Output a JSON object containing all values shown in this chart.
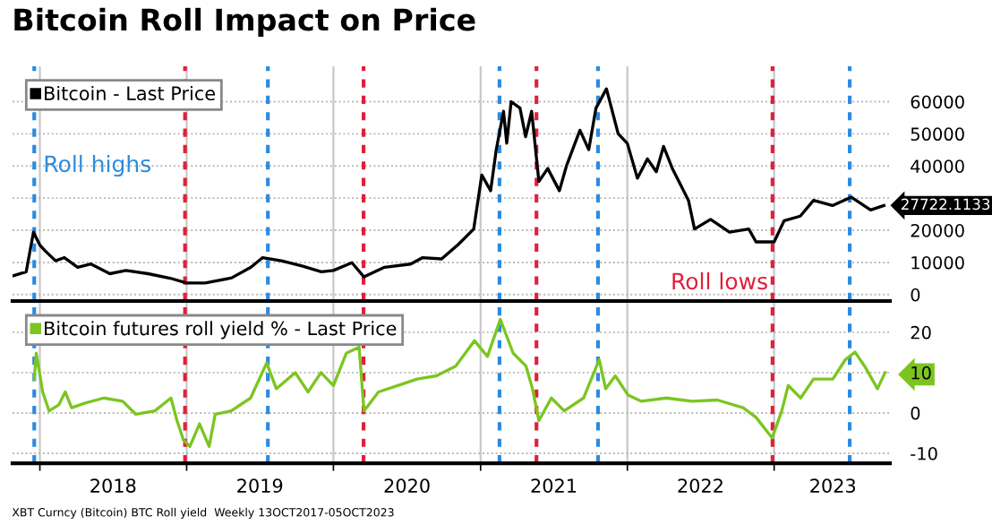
{
  "chart_data": [
    {
      "type": "line",
      "title": "Bitcoin Roll Impact on Price",
      "series": [
        {
          "name": "Bitcoin - Last Price",
          "color": "#000000",
          "x": [
            "2017-10-28",
            "2017-11-28",
            "2017-12-16",
            "2018-01-01",
            "2018-01-15",
            "2018-02-09",
            "2018-03-03",
            "2018-04-05",
            "2018-05-08",
            "2018-06-24",
            "2018-08-03",
            "2018-09-27",
            "2018-11-21",
            "2019-01-01",
            "2019-02-16",
            "2019-04-23",
            "2019-06-10",
            "2019-07-09",
            "2019-08-25",
            "2019-10-15",
            "2019-12-02",
            "2020-01-01",
            "2020-02-16",
            "2020-03-17",
            "2020-05-07",
            "2020-07-11",
            "2020-08-10",
            "2020-09-26",
            "2020-11-05",
            "2020-12-15",
            "2021-01-04",
            "2021-01-26",
            "2021-02-09",
            "2021-02-27",
            "2021-03-07",
            "2021-03-18",
            "2021-04-09",
            "2021-04-23",
            "2021-05-08",
            "2021-05-26",
            "2021-06-17",
            "2021-07-16",
            "2021-08-03",
            "2021-09-05",
            "2021-09-27",
            "2021-10-15",
            "2021-11-10",
            "2021-12-09",
            "2022-01-01",
            "2022-01-26",
            "2022-02-20",
            "2022-03-14",
            "2022-04-01",
            "2022-04-23",
            "2022-06-02",
            "2022-06-17",
            "2022-07-27",
            "2022-09-12",
            "2022-10-30",
            "2022-11-17",
            "2023-01-01",
            "2023-01-26",
            "2023-03-07",
            "2023-04-09",
            "2023-05-26",
            "2023-07-12",
            "2023-08-29",
            "2023-10-01"
          ],
          "values": [
            5900,
            7100,
            19400,
            15400,
            13500,
            10500,
            11500,
            8500,
            9500,
            6500,
            7500,
            6500,
            5100,
            3600,
            3600,
            5200,
            8500,
            11500,
            10500,
            8900,
            7100,
            7500,
            9900,
            5500,
            8500,
            9500,
            11500,
            11100,
            15400,
            20400,
            37200,
            32300,
            45100,
            57000,
            47100,
            60000,
            58000,
            49100,
            57000,
            35200,
            39200,
            32300,
            40200,
            51100,
            45100,
            58000,
            64000,
            50100,
            47000,
            36200,
            42200,
            38200,
            46100,
            39200,
            29300,
            20400,
            23400,
            19400,
            20400,
            16400,
            16400,
            23000,
            24400,
            29300,
            27700,
            30300,
            26300,
            27700
          ]
        }
      ],
      "ref_lines": [
        {
          "axis": "x",
          "value": "2017-12-18",
          "color": "#2b8be0",
          "line_style": "dashed"
        },
        {
          "axis": "x",
          "value": "2018-12-28",
          "color": "#e0203a",
          "line_style": "dashed"
        },
        {
          "axis": "x",
          "value": "2019-07-22",
          "color": "#2b8be0",
          "line_style": "dashed"
        },
        {
          "axis": "x",
          "value": "2020-03-16",
          "color": "#e0203a",
          "line_style": "dashed"
        },
        {
          "axis": "x",
          "value": "2021-02-17",
          "color": "#2b8be0",
          "line_style": "dashed"
        },
        {
          "axis": "x",
          "value": "2021-05-20",
          "color": "#e0203a",
          "line_style": "dashed"
        },
        {
          "axis": "x",
          "value": "2021-10-20",
          "color": "#2b8be0",
          "line_style": "dashed"
        },
        {
          "axis": "x",
          "value": "2022-12-28",
          "color": "#e0203a",
          "line_style": "dashed"
        },
        {
          "axis": "x",
          "value": "2023-07-08",
          "color": "#2b8be0",
          "line_style": "dashed"
        }
      ],
      "annotations": [
        "Roll highs",
        "Roll lows",
        {
          "text": "27722.1133",
          "x": "2023-10-01",
          "y": 27722.1133
        }
      ],
      "xlim": [
        "2017-10-25",
        "2023-10-16"
      ],
      "xticks": [
        {
          "value": "2018-01-01",
          "label": null
        },
        {
          "value": "2019-01-01",
          "label": null
        },
        {
          "value": "2020-01-01",
          "label": null
        },
        {
          "value": "2021-01-01",
          "label": null
        },
        {
          "value": "2022-01-01",
          "label": null
        },
        {
          "value": "2023-01-01",
          "label": null
        }
      ],
      "ylim": [
        -2000,
        71000
      ],
      "yticks": [
        0,
        10000,
        20000,
        {
          "value": 30000,
          "label": null
        },
        40000,
        50000,
        60000
      ],
      "tick_labels": "y",
      "grid": true,
      "legend": "top left"
    },
    {
      "type": "line",
      "series": [
        {
          "name": "Bitcoin futures roll yield % - Last Price",
          "color": "#7cc520",
          "x": [
            "2017-12-18",
            "2017-12-23",
            "2018-01-08",
            "2018-01-24",
            "2018-02-17",
            "2018-03-05",
            "2018-03-21",
            "2018-04-22",
            "2018-06-09",
            "2018-07-26",
            "2018-08-27",
            "2018-10-14",
            "2018-11-23",
            "2018-12-08",
            "2018-12-24",
            "2019-01-09",
            "2019-02-02",
            "2019-02-26",
            "2019-03-13",
            "2019-04-22",
            "2019-06-09",
            "2019-07-19",
            "2019-08-12",
            "2019-09-28",
            "2019-10-30",
            "2019-12-01",
            "2020-01-01",
            "2020-02-02",
            "2020-03-05",
            "2020-03-17",
            "2020-04-22",
            "2020-06-09",
            "2020-07-27",
            "2020-09-13",
            "2020-10-31",
            "2020-12-17",
            "2021-01-18",
            "2021-02-19",
            "2021-03-23",
            "2021-04-24",
            "2021-05-10",
            "2021-05-26",
            "2021-06-26",
            "2021-07-28",
            "2021-09-14",
            "2021-10-23",
            "2021-11-08",
            "2021-12-02",
            "2022-01-03",
            "2022-02-04",
            "2022-04-08",
            "2022-06-11",
            "2022-08-13",
            "2022-10-16",
            "2022-11-17",
            "2022-12-27",
            "2023-01-20",
            "2023-02-05",
            "2023-03-08",
            "2023-04-09",
            "2023-05-27",
            "2023-06-27",
            "2023-07-21",
            "2023-08-14",
            "2023-09-15",
            "2023-10-04"
          ],
          "values": [
            8.4,
            14.8,
            5.2,
            0.5,
            2,
            5.2,
            1.3,
            2.4,
            3.7,
            2.9,
            -0.3,
            0.5,
            3.7,
            -1.9,
            -6.7,
            -8.3,
            -2.7,
            -8.3,
            -0.3,
            0.5,
            3.7,
            12.4,
            6,
            10,
            5.2,
            10,
            6.8,
            14.8,
            16.3,
            0.5,
            5.2,
            6.8,
            8.4,
            9.2,
            11.6,
            17.9,
            14,
            23.2,
            14.8,
            11.6,
            6,
            -1.9,
            3.7,
            0.5,
            3.7,
            13.2,
            6,
            9.2,
            4.4,
            2.9,
            3.7,
            2.9,
            3.2,
            1.3,
            -1.1,
            -6.2,
            0.5,
            6.8,
            3.7,
            8.4,
            8.4,
            13.2,
            15.1,
            11.6,
            6,
            10
          ]
        }
      ],
      "ref_lines": [
        {
          "axis": "x",
          "value": "2017-12-18",
          "color": "#2b8be0",
          "line_style": "dashed"
        },
        {
          "axis": "x",
          "value": "2018-12-28",
          "color": "#e0203a",
          "line_style": "dashed"
        },
        {
          "axis": "x",
          "value": "2019-07-22",
          "color": "#2b8be0",
          "line_style": "dashed"
        },
        {
          "axis": "x",
          "value": "2020-03-16",
          "color": "#e0203a",
          "line_style": "dashed"
        },
        {
          "axis": "x",
          "value": "2021-02-17",
          "color": "#2b8be0",
          "line_style": "dashed"
        },
        {
          "axis": "x",
          "value": "2021-05-20",
          "color": "#e0203a",
          "line_style": "dashed"
        },
        {
          "axis": "x",
          "value": "2021-10-20",
          "color": "#2b8be0",
          "line_style": "dashed"
        },
        {
          "axis": "x",
          "value": "2022-12-28",
          "color": "#e0203a",
          "line_style": "dashed"
        },
        {
          "axis": "x",
          "value": "2023-07-08",
          "color": "#2b8be0",
          "line_style": "dashed"
        }
      ],
      "annotations": [
        "XBT Curncy (Bitcoin) BTC Roll yield  Weekly 13OCT2017-05OCT2023"
      ],
      "xlim": [
        "2017-10-25",
        "2023-10-16"
      ],
      "xticks": [
        {
          "value": "2018-01-01",
          "label": null
        },
        {
          "value": "2018-07-02",
          "label": "2018"
        },
        {
          "value": "2019-01-01",
          "label": null
        },
        {
          "value": "2019-07-02",
          "label": "2019"
        },
        {
          "value": "2020-01-01",
          "label": null
        },
        {
          "value": "2020-07-02",
          "label": "2020"
        },
        {
          "value": "2021-01-01",
          "label": null
        },
        {
          "value": "2021-07-02",
          "label": "2021"
        },
        {
          "value": "2022-01-01",
          "label": null
        },
        {
          "value": "2022-07-02",
          "label": "2022"
        },
        {
          "value": "2023-01-01",
          "label": null
        },
        {
          "value": "2023-05-27",
          "label": "2023"
        }
      ],
      "ylim": [
        -12.5,
        27.3
      ],
      "yticks": [
        -10,
        0,
        10,
        20
      ],
      "grid": true,
      "legend": "top left"
    }
  ]
}
